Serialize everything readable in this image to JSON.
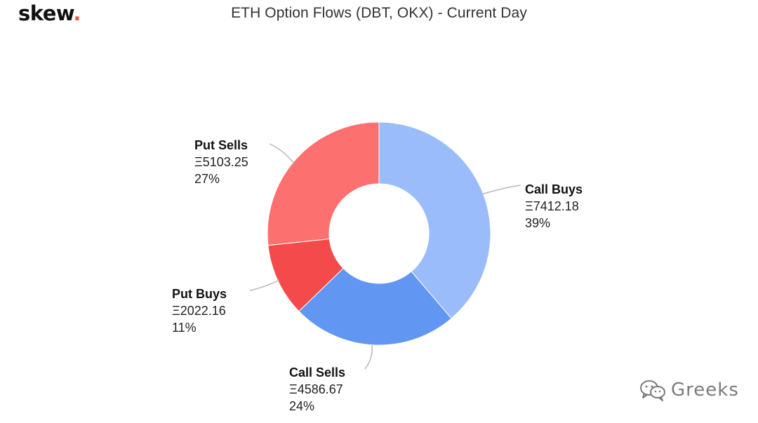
{
  "logo": {
    "text": "skew",
    "dot": "."
  },
  "watermark": {
    "text": "Greeks",
    "icon": "wechat-icon"
  },
  "chart_data": {
    "type": "pie",
    "donut": true,
    "title": "ETH Option Flows (DBT, OKX) - Current Day",
    "currency_symbol": "Ξ",
    "slices": [
      {
        "label": "Call Buys",
        "value": 7412.18,
        "value_text": "Ξ7412.18",
        "percent_text": "39%",
        "color": "#9bbcfb"
      },
      {
        "label": "Call Sells",
        "value": 4586.67,
        "value_text": "Ξ4586.67",
        "percent_text": "24%",
        "color": "#6196f3"
      },
      {
        "label": "Put Buys",
        "value": 2022.16,
        "value_text": "Ξ2022.16",
        "percent_text": "11%",
        "color": "#f44a4b"
      },
      {
        "label": "Put Sells",
        "value": 5103.25,
        "value_text": "Ξ5103.25",
        "percent_text": "27%",
        "color": "#fd7070"
      }
    ],
    "start_angle": "top, clockwise",
    "legend": "none",
    "data_labels": "outside with connector lines"
  }
}
